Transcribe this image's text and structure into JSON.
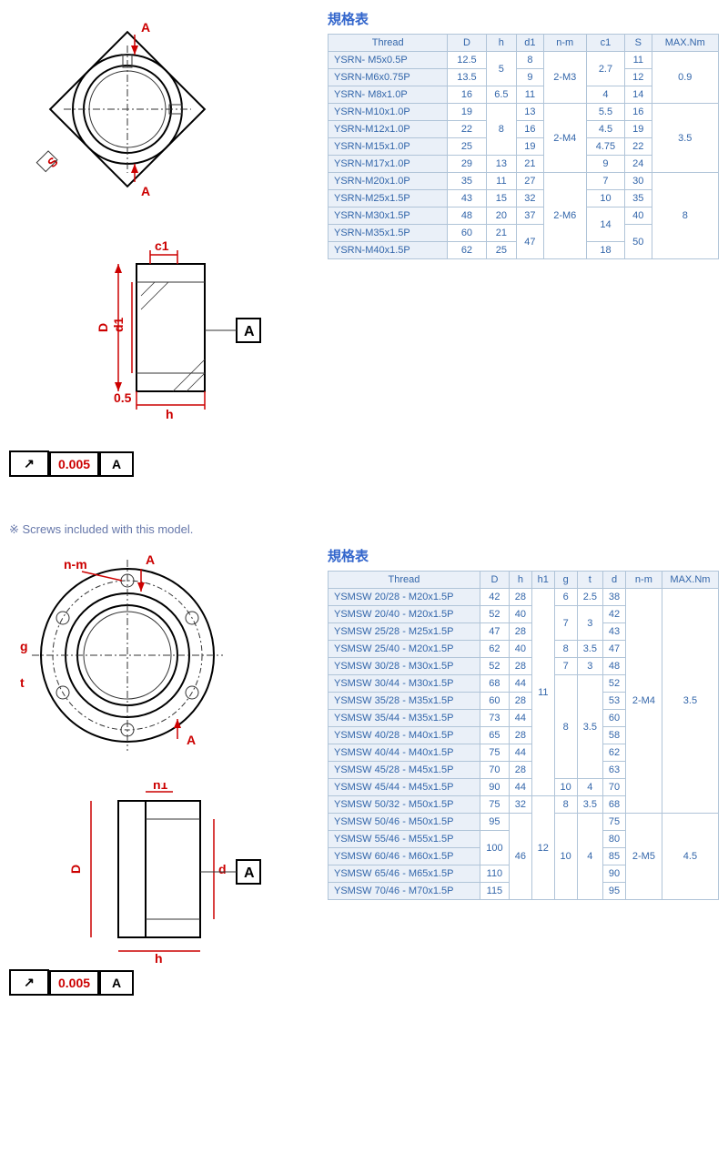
{
  "section1": {
    "title": "規格表",
    "tolerance_value": "0.005",
    "tolerance_datum": "A",
    "diagram_labels": {
      "a1": "A",
      "a2": "A",
      "s": "S",
      "c1": "c1",
      "d": "D",
      "d1": "d1",
      "h": "h",
      "halfmark": "0.5",
      "datum": "A"
    },
    "columns": [
      "Thread",
      "D",
      "h",
      "d1",
      "n-m",
      "c1",
      "S",
      "MAX.Nm"
    ],
    "rows": [
      {
        "thread": "YSRN- M5x0.5P",
        "D": "12.5",
        "h": "5",
        "h_span": 2,
        "d1": "8",
        "nm": "2-M3",
        "nm_span": 3,
        "c1": "2.7",
        "c1_span": 2,
        "S": "11",
        "max": "0.9",
        "max_span": 3
      },
      {
        "thread": "YSRN-M6x0.75P",
        "D": "13.5",
        "d1": "9",
        "S": "12"
      },
      {
        "thread": "YSRN- M8x1.0P",
        "D": "16",
        "h": "6.5",
        "d1": "11",
        "c1": "4",
        "S": "14"
      },
      {
        "thread": "YSRN-M10x1.0P",
        "D": "19",
        "h": "8",
        "h_span": 3,
        "d1": "13",
        "nm": "2-M4",
        "nm_span": 4,
        "c1": "5.5",
        "S": "16",
        "max": "3.5",
        "max_span": 4
      },
      {
        "thread": "YSRN-M12x1.0P",
        "D": "22",
        "d1": "16",
        "c1": "4.5",
        "S": "19"
      },
      {
        "thread": "YSRN-M15x1.0P",
        "D": "25",
        "d1": "19",
        "c1": "4.75",
        "S": "22"
      },
      {
        "thread": "YSRN-M17x1.0P",
        "D": "29",
        "h": "13",
        "d1": "21",
        "c1": "9",
        "S": "24"
      },
      {
        "thread": "YSRN-M20x1.0P",
        "D": "35",
        "h": "11",
        "d1": "27",
        "nm": "2-M6",
        "nm_span": 5,
        "c1": "7",
        "S": "30",
        "max": "8",
        "max_span": 5
      },
      {
        "thread": "YSRN-M25x1.5P",
        "D": "43",
        "h": "15",
        "d1": "32",
        "c1": "10",
        "S": "35"
      },
      {
        "thread": "YSRN-M30x1.5P",
        "D": "48",
        "h": "20",
        "d1": "37",
        "c1": "14",
        "c1_span": 2,
        "S": "40"
      },
      {
        "thread": "YSRN-M35x1.5P",
        "D": "60",
        "h": "21",
        "d1": "47",
        "d1_span": 2,
        "S": "50",
        "S_span": 2
      },
      {
        "thread": "YSRN-M40x1.5P",
        "D": "62",
        "h": "25",
        "c1": "18"
      }
    ]
  },
  "section2": {
    "title": "規格表",
    "note": "※ Screws included with this model.",
    "tolerance_value": "0.005",
    "tolerance_datum": "A",
    "diagram_labels": {
      "nm": "n-m",
      "a1": "A",
      "a2": "A",
      "g": "g",
      "t": "t",
      "h1": "h1",
      "d": "d",
      "D": "D",
      "h": "h",
      "datum": "A"
    },
    "columns": [
      "Thread",
      "D",
      "h",
      "h1",
      "g",
      "t",
      "d",
      "n-m",
      "MAX.Nm"
    ],
    "rows": [
      {
        "thread": "YSMSW 20/28 - M20x1.5P",
        "D": "42",
        "h": "28",
        "h1": "11",
        "h1_span": 12,
        "g": "6",
        "t": "2.5",
        "d": "38",
        "nm": "2-M4",
        "nm_span": 13,
        "max": "3.5",
        "max_span": 13
      },
      {
        "thread": "YSMSW 20/40 - M20x1.5P",
        "D": "52",
        "h": "40",
        "g": "7",
        "g_span": 2,
        "t": "3",
        "t_span": 2,
        "d": "42"
      },
      {
        "thread": "YSMSW 25/28 - M25x1.5P",
        "D": "47",
        "h": "28",
        "d": "43"
      },
      {
        "thread": "YSMSW 25/40 - M20x1.5P",
        "D": "62",
        "h": "40",
        "g": "8",
        "t": "3.5",
        "d": "47"
      },
      {
        "thread": "YSMSW 30/28 - M30x1.5P",
        "D": "52",
        "h": "28",
        "g": "7",
        "t": "3",
        "d": "48"
      },
      {
        "thread": "YSMSW 30/44 - M30x1.5P",
        "D": "68",
        "h": "44",
        "g": "8",
        "g_span": 6,
        "t": "3.5",
        "t_span": 6,
        "d": "52"
      },
      {
        "thread": "YSMSW 35/28 - M35x1.5P",
        "D": "60",
        "h": "28",
        "d": "53"
      },
      {
        "thread": "YSMSW 35/44 - M35x1.5P",
        "D": "73",
        "h": "44",
        "d": "60"
      },
      {
        "thread": "YSMSW 40/28 - M40x1.5P",
        "D": "65",
        "h": "28",
        "d": "58"
      },
      {
        "thread": "YSMSW 40/44 - M40x1.5P",
        "D": "75",
        "h": "44",
        "d": "62"
      },
      {
        "thread": "YSMSW 45/28 - M45x1.5P",
        "D": "70",
        "h": "28",
        "d": "63"
      },
      {
        "thread": "YSMSW 45/44 - M45x1.5P",
        "D": "90",
        "h": "44",
        "g": "10",
        "t": "4",
        "d": "70"
      },
      {
        "thread": "YSMSW 50/32 - M50x1.5P",
        "D": "75",
        "h": "32",
        "h1": "12",
        "h1_span": 6,
        "g": "8",
        "t": "3.5",
        "d": "68"
      },
      {
        "thread": "YSMSW 50/46 - M50x1.5P",
        "D": "95",
        "h": "46",
        "h_span": 5,
        "g": "10",
        "g_span": 5,
        "t": "4",
        "t_span": 5,
        "d": "75",
        "nm": "2-M5",
        "nm_span": 5,
        "max": "4.5",
        "max_span": 5
      },
      {
        "thread": "YSMSW 55/46 - M55x1.5P",
        "D": "100",
        "D_span": 2,
        "d": "80"
      },
      {
        "thread": "YSMSW 60/46 - M60x1.5P",
        "d": "85"
      },
      {
        "thread": "YSMSW 65/46 - M65x1.5P",
        "D": "110",
        "d": "90"
      },
      {
        "thread": "YSMSW 70/46 - M70x1.5P",
        "D": "115",
        "d": "95"
      }
    ]
  }
}
